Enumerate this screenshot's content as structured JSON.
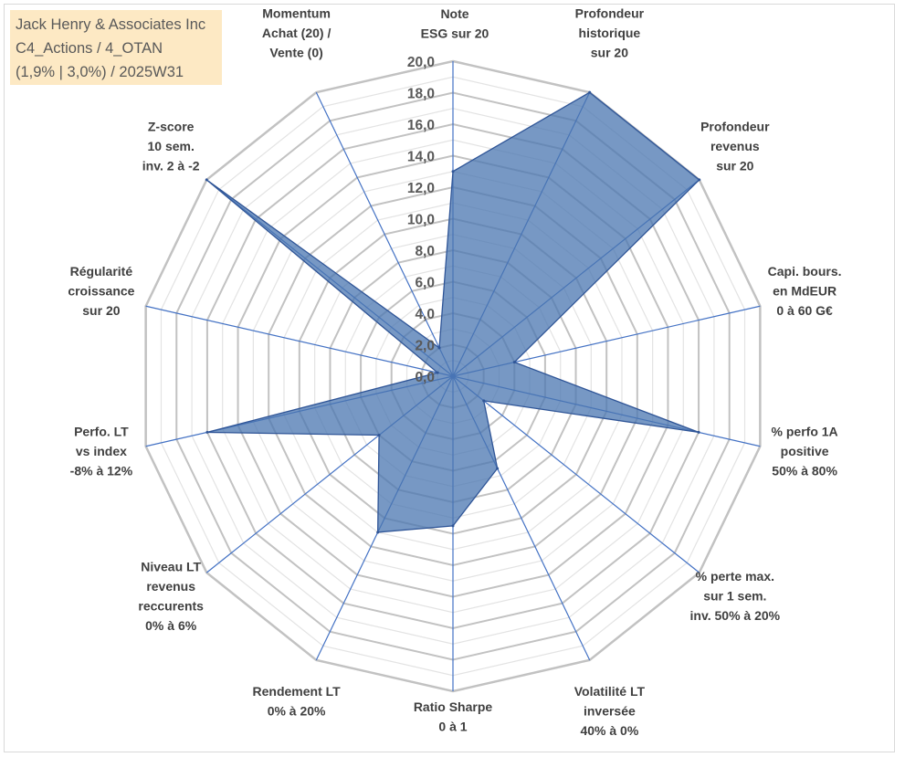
{
  "header": {
    "company": "Jack Henry & Associates Inc",
    "category": "C4_Actions / 4_OTAN",
    "period": "(1,9% | 3,0%) / 2025W31"
  },
  "chart_data": {
    "type": "radar",
    "axes": [
      {
        "key": "esg",
        "label": [
          "Note",
          "ESG sur 20"
        ]
      },
      {
        "key": "profondeur_historique",
        "label": [
          "Profondeur",
          "historique",
          "sur 20"
        ]
      },
      {
        "key": "profondeur_revenus",
        "label": [
          "Profondeur",
          "revenus",
          "sur 20"
        ]
      },
      {
        "key": "capi",
        "label": [
          "Capi. bours.",
          "en MdEUR",
          "0 à 60 G€"
        ]
      },
      {
        "key": "perfo_1a",
        "label": [
          "% perfo 1A",
          "positive",
          "50% à 80%"
        ]
      },
      {
        "key": "perte_max",
        "label": [
          "% perte max.",
          "sur 1 sem.",
          "inv. 50% à 20%"
        ]
      },
      {
        "key": "volatilite",
        "label": [
          "Volatilité LT",
          "inversée",
          "40% à 0%"
        ]
      },
      {
        "key": "sharpe",
        "label": [
          "Ratio Sharpe",
          "0 à 1"
        ]
      },
      {
        "key": "rendement",
        "label": [
          "Rendement LT",
          "0% à 20%"
        ]
      },
      {
        "key": "revenus_recurrents",
        "label": [
          "Niveau LT",
          "revenus",
          "reccurents",
          "0% à 6%"
        ]
      },
      {
        "key": "perfo_lt",
        "label": [
          "Perfo. LT",
          "vs index",
          "-8% à 12%"
        ]
      },
      {
        "key": "regularite",
        "label": [
          "Régularité",
          "croissance",
          "sur 20"
        ]
      },
      {
        "key": "zscore",
        "label": [
          "Z-score",
          "10 sem.",
          "inv. 2 à -2"
        ]
      },
      {
        "key": "momentum",
        "label": [
          "Momentum",
          "Achat (20) /",
          "Vente (0)"
        ]
      }
    ],
    "series": [
      {
        "values": [
          13.0,
          20.0,
          20.0,
          4.0,
          16.0,
          2.5,
          6.5,
          9.5,
          11.0,
          6.0,
          16.0,
          1.0,
          20.0,
          2.0
        ]
      }
    ],
    "rlim": [
      0,
      20
    ],
    "ticks": [
      "0,0",
      "2,0",
      "4,0",
      "6,0",
      "8,0",
      "10,0",
      "12,0",
      "14,0",
      "16,0",
      "18,0",
      "20,0"
    ],
    "tick_values": [
      0,
      2,
      4,
      6,
      8,
      10,
      12,
      14,
      16,
      18,
      20
    ],
    "colors": {
      "fill": "#4a76b0",
      "stroke": "#2f5597",
      "spoke": "#4472c4",
      "grid_major": "#c2c2c2",
      "grid_minor": "#e3e3e3"
    }
  }
}
